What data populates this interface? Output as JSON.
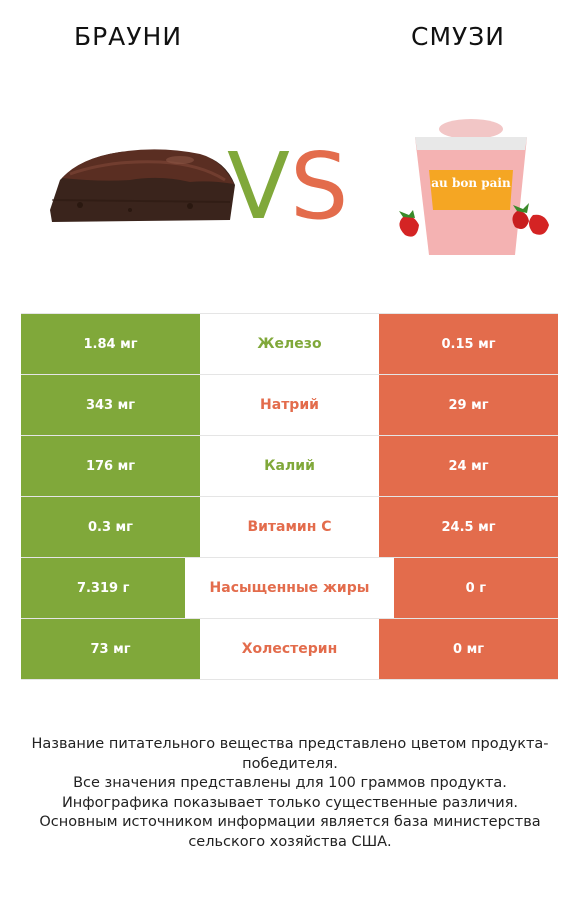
{
  "header": {
    "left_title": "БРАУНИ",
    "right_title": "СМУЗИ",
    "vs_left_letter": "V",
    "vs_right_letter": "S",
    "cup_brand": "au bon pain"
  },
  "colors": {
    "winner_left": "#80a83a",
    "winner_right": "#e36c4c"
  },
  "rows": [
    {
      "left": "1.84 мг",
      "label": "Железо",
      "right": "0.15 мг",
      "winner": "left"
    },
    {
      "left": "343 мг",
      "label": "Натрий",
      "right": "29 мг",
      "winner": "right"
    },
    {
      "left": "176 мг",
      "label": "Калий",
      "right": "24 мг",
      "winner": "left"
    },
    {
      "left": "0.3 мг",
      "label": "Витамин C",
      "right": "24.5 мг",
      "winner": "right"
    },
    {
      "left": "7.319 г",
      "label": "Насыщенные жиры",
      "right": "0 г",
      "winner": "right"
    },
    {
      "left": "73 мг",
      "label": "Холестерин",
      "right": "0 мг",
      "winner": "right"
    }
  ],
  "footnote": {
    "line1": "Название питательного вещества представлено цветом продукта-победителя.",
    "line2": "Все значения представлены для 100 граммов продукта.",
    "line3": "Инфографика показывает только существенные различия.",
    "line4": "Основным источником информации является база министерства сельского хозяйства США."
  }
}
